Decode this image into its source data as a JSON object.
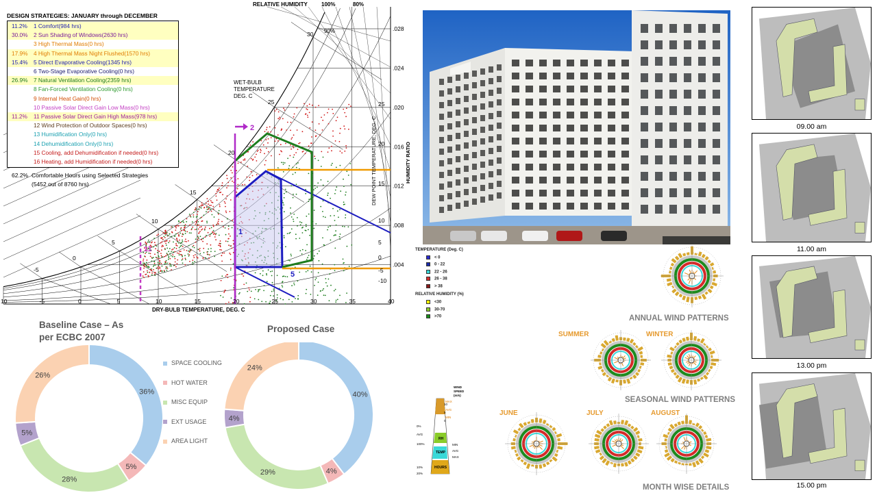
{
  "psychro": {
    "header_rh": "RELATIVE HUMIDITY",
    "header_100": "100%",
    "header_80": "80%",
    "label_90": "90%",
    "wet_bulb": [
      "WET-BULB",
      "TEMPERATURE",
      "DEG. C"
    ],
    "dry_bulb": "DRY-BULB TEMPERATURE, DEG. C",
    "humidity_ratio": "HUMIDITY RATIO",
    "dew_point": "DEW POINT TEMPERATURE, DEG. C",
    "x_ticks": [
      "10",
      "-5",
      "0",
      "5",
      "10",
      "15",
      "20",
      "25",
      "30",
      "35",
      "40"
    ],
    "hr_ticks": [
      ".028",
      ".024",
      ".020",
      ".016",
      ".012",
      ".008",
      ".004"
    ],
    "dp_ticks": [
      "25",
      "20",
      "15",
      "10",
      "5",
      "0",
      "-5",
      "-10"
    ],
    "wb_ticks": [
      "30",
      "25",
      "20",
      "15",
      "10",
      "5",
      "0",
      "-5"
    ],
    "zone_labels": [
      "2",
      "1",
      "5",
      "11"
    ],
    "design_title": "DESIGN STRATEGIES:  JANUARY through DECEMBER",
    "strategies": [
      {
        "pct": "11.2%",
        "text": "1  Comfort(984 hrs)",
        "color": "#1c1caf",
        "hl": true
      },
      {
        "pct": "30.0%",
        "text": "2  Sun Shading of Windows(2630 hrs)",
        "color": "#7a1a9a",
        "hl": true
      },
      {
        "pct": "",
        "text": "3  High Thermal Mass(0 hrs)",
        "color": "#e07b00",
        "hl": false
      },
      {
        "pct": "17.9%",
        "text": "4  High Thermal Mass Night Flushed(1570 hrs)",
        "color": "#e07b00",
        "hl": true
      },
      {
        "pct": "15.4%",
        "text": "5  Direct Evaporative Cooling(1345 hrs)",
        "color": "#1c1caf",
        "hl": true
      },
      {
        "pct": "",
        "text": "6  Two-Stage Evaporative Cooling(0 hrs)",
        "color": "#1c1c6f",
        "hl": false
      },
      {
        "pct": "26.9%",
        "text": "7  Natural Ventilation Cooling(2359 hrs)",
        "color": "#1f7a1f",
        "hl": true
      },
      {
        "pct": "",
        "text": "8  Fan-Forced Ventilation Cooling(0 hrs)",
        "color": "#2e9a2e",
        "hl": false
      },
      {
        "pct": "",
        "text": "9  Internal Heat Gain(0 hrs)",
        "color": "#d14b00",
        "hl": false
      },
      {
        "pct": "",
        "text": "10  Passive Solar Direct Gain Low Mass(0 hrs)",
        "color": "#c23cc2",
        "hl": false
      },
      {
        "pct": "11.2%",
        "text": "11  Passive Solar Direct Gain High Mass(978 hrs)",
        "color": "#9a1a9a",
        "hl": true
      },
      {
        "pct": "",
        "text": "12  Wind Protection of Outdoor Spaces(0 hrs)",
        "color": "#5a3a1a",
        "hl": false
      },
      {
        "pct": "",
        "text": "13  Humidification Only(0 hrs)",
        "color": "#1aa0b0",
        "hl": false
      },
      {
        "pct": "",
        "text": "14  Dehumidification Only(0 hrs)",
        "color": "#1aa0b0",
        "hl": false
      },
      {
        "pct": "",
        "text": "15  Cooling, add Dehumidification if needed(0 hrs)",
        "color": "#c41a1a",
        "hl": false
      },
      {
        "pct": "",
        "text": "16  Heating, add Humidification if needed(0 hrs)",
        "color": "#c41a1a",
        "hl": false
      }
    ],
    "comfort_pct": "62.2%",
    "comfort_text": "Comfortable Hours using Selected Strategies",
    "comfort_sub": "(5452 out of 8760 hrs)"
  },
  "wind": {
    "temp_title": "TEMPERATURE (Deg. C)",
    "temp_items": [
      {
        "label": "< 0",
        "color": "#2a2acf"
      },
      {
        "label": "0  -  22",
        "color": "#1a2aaa"
      },
      {
        "label": "22  -  26",
        "color": "#3ad8d8"
      },
      {
        "label": "26  -  38",
        "color": "#d42a2a"
      },
      {
        "label": "> 38",
        "color": "#8a1a1a"
      }
    ],
    "rh_title": "RELATIVE HUMIDITY (%)",
    "rh_items": [
      {
        "label": "<30",
        "color": "#ffff00"
      },
      {
        "label": "30-70",
        "color": "#8acc2a"
      },
      {
        "label": ">70",
        "color": "#1a8a1a"
      }
    ],
    "annual": "ANNUAL WIND PATTERNS",
    "seasonal": "SEASONAL WIND PATTERNS",
    "monthly": "MONTH WISE DETAILS",
    "summer": "SUMMER",
    "winter": "WINTER",
    "june": "JUNE",
    "july": "JULY",
    "august": "AUGUST",
    "key_title": [
      "WIND",
      "SPEED",
      "(m/s)"
    ],
    "key_labels": [
      "MAX",
      "AVG",
      "MIN",
      "RH",
      "TEMP",
      "HOURS"
    ],
    "key_side": [
      "0%",
      "AVG",
      "100%",
      "10%",
      "20%"
    ],
    "key_right": [
      "MIN",
      "AVG",
      "MAX"
    ],
    "key_nums": [
      "10",
      "5",
      "0"
    ]
  },
  "sun_study": [
    "09.00 am",
    "11.00 am",
    "13.00 pm",
    "15.00 pm"
  ],
  "chart_data": [
    {
      "type": "pie",
      "title": "Baseline Case – As per ECBC 2007",
      "categories": [
        "SPACE COOLING",
        "HOT WATER",
        "MISC EQUIP",
        "EXT USAGE",
        "AREA LIGHT"
      ],
      "values": [
        36,
        5,
        28,
        5,
        26
      ],
      "colors": [
        "#a9cdec",
        "#f4b8b8",
        "#c8e6b0",
        "#b3a2cc",
        "#fbd2b2"
      ],
      "labels": [
        "36%",
        "5%",
        "28%",
        "5%",
        "26%"
      ],
      "legend": "right"
    },
    {
      "type": "pie",
      "title": "Proposed Case",
      "categories": [
        "SPACE COOLING",
        "HOT WATER",
        "MISC EQUIP",
        "EXT USAGE",
        "AREA LIGHT"
      ],
      "values": [
        40,
        4,
        29,
        4,
        24
      ],
      "colors": [
        "#a9cdec",
        "#f4b8b8",
        "#c8e6b0",
        "#b3a2cc",
        "#fbd2b2"
      ],
      "labels": [
        "40%",
        "4%",
        "29%",
        "4%",
        "24%"
      ]
    }
  ]
}
